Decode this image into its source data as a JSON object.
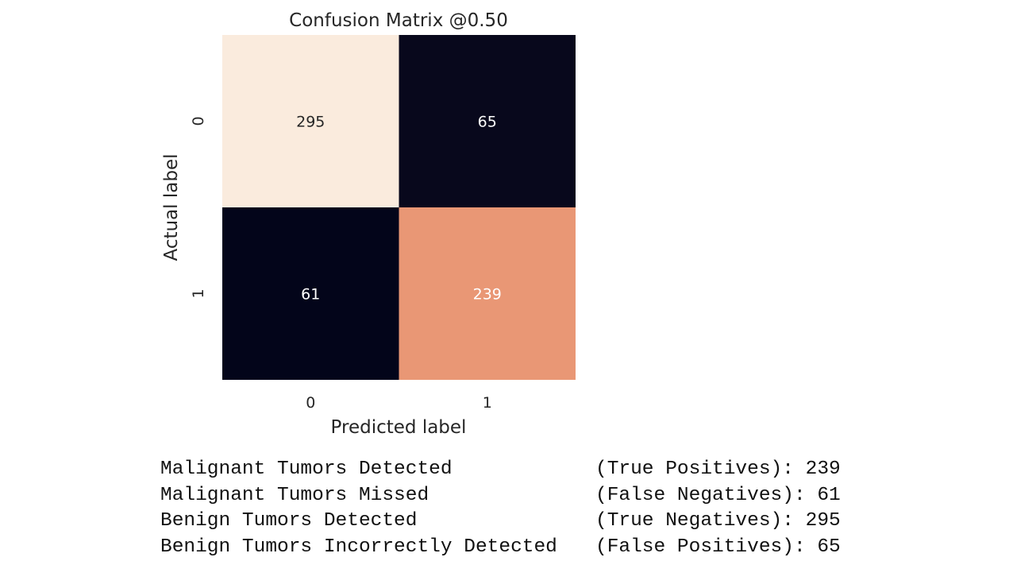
{
  "chart_data": {
    "type": "heatmap",
    "title": "Confusion Matrix @0.50",
    "xlabel": "Predicted label",
    "ylabel": "Actual label",
    "x_tick_labels": [
      "0",
      "1"
    ],
    "y_tick_labels": [
      "0",
      "1"
    ],
    "values": [
      [
        295,
        65
      ],
      [
        61,
        239
      ]
    ],
    "colorbar": false,
    "colors": {
      "low": "#03051a",
      "mid": "#e89370",
      "high": "#faebdd",
      "text_light_cell": "#262626",
      "text_dark_cell": "#ffffff"
    }
  },
  "output_lines": [
    {
      "label": "Malignant Tumors Detected",
      "metric": "(True Positives):",
      "value": "239"
    },
    {
      "label": "Malignant Tumors Missed",
      "metric": "(False Negatives):",
      "value": "61"
    },
    {
      "label": "Benign Tumors Detected",
      "metric": "(True Negatives):",
      "value": "295"
    },
    {
      "label": "Benign Tumors Incorrectly Detected",
      "metric": "(False Positives):",
      "value": "65"
    }
  ]
}
